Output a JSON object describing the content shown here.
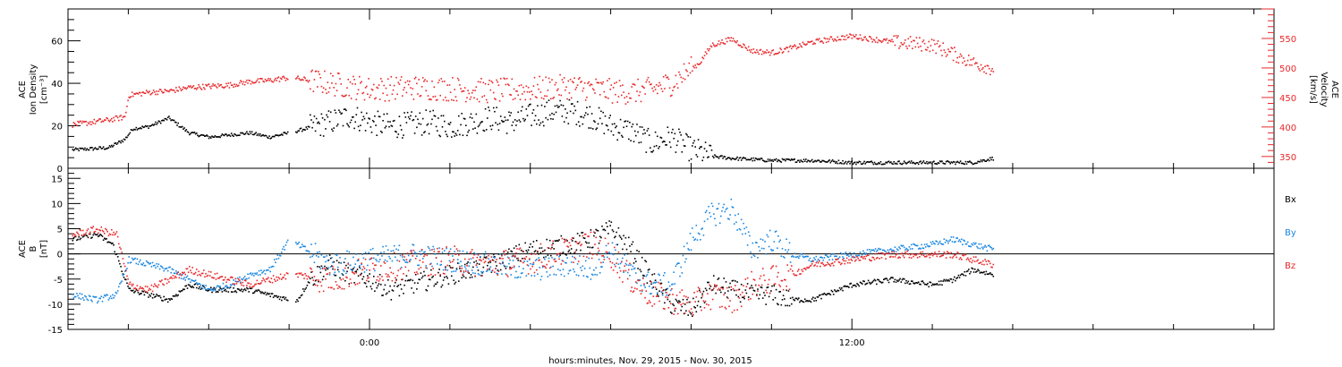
{
  "x_axis": {
    "title": "hours:minutes, Nov. 29, 2015 - Nov. 30, 2015",
    "tick_labels": [
      {
        "hour": 0,
        "label": "0:00"
      },
      {
        "hour": 12,
        "label": "12:00"
      }
    ],
    "range_hours": [
      -7.5,
      22.5
    ],
    "minor_tick_hours": [
      -6,
      -4,
      -2,
      2,
      4,
      6,
      8,
      10,
      14,
      16,
      18,
      20,
      22
    ]
  },
  "colors": {
    "black": "#000000",
    "red": "#e8282b",
    "blue": "#1b87e0",
    "axis": "#000000",
    "zero": "#000000"
  },
  "chart_data": [
    {
      "type": "scatter",
      "panel": "top",
      "left_axis": {
        "label_lines": [
          "ACE",
          "Ion Density",
          "[cm⁻³]"
        ],
        "ylim": [
          0,
          75
        ],
        "ticks": [
          0,
          20,
          40,
          60
        ]
      },
      "right_axis": {
        "label_lines": [
          "ACE",
          "Velocity",
          "[km/s]"
        ],
        "ylim": [
          330,
          600
        ],
        "ticks": [
          350,
          400,
          450,
          500,
          550
        ]
      },
      "series": [
        {
          "color": "black",
          "axis": "left",
          "noise": 1.0,
          "x": [
            -7.4,
            -6.5,
            -6.1,
            -5.9,
            -5.5,
            -5.0,
            -4.5,
            -4.0,
            -3.5,
            -3.0,
            -2.5,
            -2.0,
            -1.8,
            -1.0,
            -0.5,
            0.0,
            0.5,
            1.0,
            1.5,
            2.0,
            2.5,
            3.0,
            3.5,
            4.0,
            4.5,
            5.0,
            5.5,
            6.0,
            6.5,
            7.0,
            7.5,
            8.0,
            8.2,
            8.5,
            9.0,
            10.0,
            11.0,
            12.0,
            13.0,
            14.0,
            15.0,
            15.5
          ],
          "y": [
            9,
            10,
            14,
            19,
            20,
            24,
            17,
            15,
            16,
            17,
            15,
            17,
            18,
            22,
            25,
            22,
            20,
            21,
            22,
            20,
            22,
            24,
            22,
            25,
            27,
            27,
            25,
            20,
            18,
            12,
            15,
            9,
            8,
            6,
            5,
            4,
            4,
            3,
            3,
            3,
            3,
            5
          ]
        },
        {
          "color": "red",
          "axis": "right",
          "noise": 3,
          "x": [
            -7.4,
            -6.6,
            -6.1,
            -6.0,
            -5.5,
            -5.0,
            -4.5,
            -4.0,
            -3.5,
            -3.0,
            -2.5,
            -2.0,
            -1.8,
            -1.0,
            0.0,
            1.0,
            2.0,
            3.0,
            4.0,
            5.0,
            6.0,
            6.5,
            7.0,
            7.5,
            8.0,
            8.2,
            8.5,
            9.0,
            9.5,
            10.0,
            10.5,
            11.0,
            12.0,
            12.5,
            13.0,
            14.0,
            14.5,
            15.0,
            15.5
          ],
          "y": [
            405,
            412,
            418,
            455,
            460,
            462,
            468,
            470,
            472,
            478,
            480,
            485,
            483,
            475,
            465,
            468,
            466,
            462,
            465,
            470,
            462,
            460,
            465,
            475,
            500,
            510,
            540,
            550,
            530,
            527,
            535,
            545,
            555,
            550,
            545,
            540,
            525,
            510,
            500
          ]
        }
      ]
    },
    {
      "type": "scatter",
      "panel": "bottom",
      "left_axis": {
        "label_lines": [
          "ACE",
          "B",
          "[nT]"
        ],
        "ylim": [
          -15,
          17
        ],
        "ticks": [
          -15,
          -10,
          -5,
          0,
          5,
          10,
          15
        ]
      },
      "legend": [
        {
          "text": "Bx",
          "color": "black"
        },
        {
          "text": "By",
          "color": "blue"
        },
        {
          "text": "Bz",
          "color": "red"
        }
      ],
      "series": [
        {
          "name": "Bx",
          "color": "black",
          "noise": 0.5,
          "x": [
            -7.4,
            -6.8,
            -6.4,
            -6.0,
            -5.5,
            -5.0,
            -4.5,
            -4.0,
            -3.5,
            -3.0,
            -2.5,
            -2.0,
            -1.8,
            -1.5,
            -1.0,
            -0.5,
            0.0,
            0.5,
            1.0,
            2.0,
            3.0,
            4.0,
            5.0,
            5.5,
            6.0,
            6.5,
            7.0,
            7.5,
            8.0,
            8.5,
            9.0,
            9.5,
            10.0,
            10.5,
            11.0,
            12.0,
            13.0,
            14.0,
            14.5,
            15.0,
            15.5
          ],
          "y": [
            3,
            4,
            2,
            -7,
            -8,
            -9,
            -6,
            -7,
            -7,
            -7,
            -8,
            -9,
            -9,
            -5,
            -2,
            -4,
            -5,
            -7,
            -6,
            -4,
            -2,
            1,
            2,
            3,
            5,
            1,
            -5,
            -10,
            -11,
            -6,
            -7,
            -8,
            -8,
            -9,
            -9,
            -6,
            -5,
            -6,
            -5,
            -3,
            -4
          ]
        },
        {
          "name": "By",
          "color": "blue",
          "noise": 0.6,
          "x": [
            -7.4,
            -6.8,
            -6.3,
            -6.0,
            -5.5,
            -5.0,
            -4.5,
            -4.0,
            -3.5,
            -3.0,
            -2.5,
            -2.0,
            -1.8,
            -1.0,
            0.0,
            1.0,
            2.0,
            3.0,
            4.0,
            5.0,
            5.5,
            6.0,
            6.5,
            7.0,
            7.5,
            8.0,
            8.5,
            9.0,
            9.5,
            10.0,
            10.5,
            11.0,
            12.0,
            13.0,
            14.0,
            14.5,
            15.0,
            15.5
          ],
          "y": [
            -8,
            -9,
            -8,
            -1,
            -2,
            -3,
            -5,
            -7,
            -6,
            -4,
            -3,
            3,
            2,
            -2,
            -1,
            0,
            -1,
            -2,
            -3,
            -2,
            -3,
            1,
            -4,
            -6,
            -6,
            3,
            8,
            9,
            1,
            3,
            0,
            -1,
            0,
            1,
            2,
            3,
            2,
            1
          ]
        },
        {
          "name": "Bz",
          "color": "red",
          "noise": 0.7,
          "x": [
            -7.4,
            -6.8,
            -6.3,
            -6.0,
            -5.5,
            -5.0,
            -4.5,
            -4.0,
            -3.5,
            -3.0,
            -2.5,
            -2.0,
            -1.8,
            -1.0,
            0.0,
            1.0,
            2.0,
            3.0,
            4.0,
            5.0,
            5.5,
            6.0,
            6.5,
            7.0,
            7.5,
            8.0,
            8.5,
            9.0,
            9.5,
            10.0,
            10.5,
            11.0,
            12.0,
            13.0,
            14.0,
            14.5,
            15.0,
            15.5
          ],
          "y": [
            4,
            5,
            4,
            -6,
            -7,
            -5,
            -3,
            -4,
            -5,
            -6,
            -5,
            -4,
            -4,
            -5,
            -3,
            -2,
            -1,
            -2,
            -1,
            1,
            2,
            0,
            -5,
            -8,
            -9,
            -10,
            -8,
            -9,
            -6,
            -5,
            -4,
            -2,
            -1,
            0,
            0,
            0,
            -1,
            -2
          ]
        }
      ]
    }
  ]
}
